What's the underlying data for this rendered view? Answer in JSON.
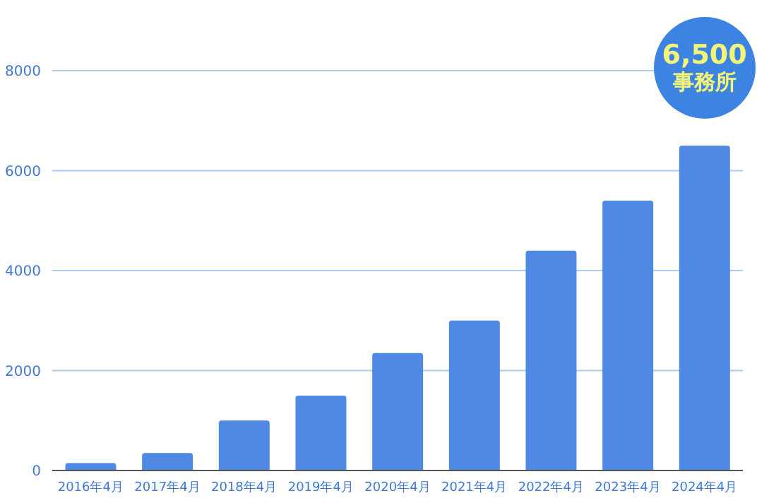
{
  "chart_data": {
    "type": "bar",
    "categories": [
      "2016年4月",
      "2017年4月",
      "2018年4月",
      "2019年4月",
      "2020年4月",
      "2021年4月",
      "2022年4月",
      "2023年4月",
      "2024年4月"
    ],
    "values": [
      150,
      350,
      1000,
      1500,
      2350,
      3000,
      4400,
      5400,
      6500
    ],
    "color": "#5089e3",
    "ylim": [
      0,
      8000
    ],
    "yticks": [
      0,
      2000,
      4000,
      6000,
      8000
    ],
    "grid": "y",
    "legend": false,
    "annotations": [
      {
        "text": "6,500\n事務所",
        "x": "2024年4月",
        "y": 6500
      }
    ]
  }
}
